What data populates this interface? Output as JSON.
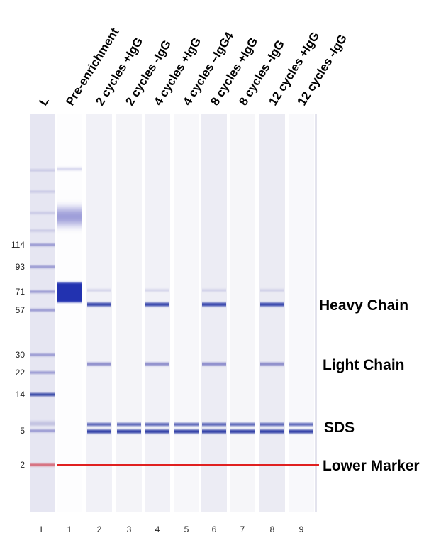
{
  "lanes": [
    {
      "header": "L",
      "number": "L"
    },
    {
      "header": "Pre-enrichment",
      "number": "1"
    },
    {
      "header": "2 cycles +IgG",
      "number": "2"
    },
    {
      "header": "2 cycles -IgG",
      "number": "3"
    },
    {
      "header": "4 cycles +IgG",
      "number": "4"
    },
    {
      "header": "4 cycles –IgG4",
      "number": "5"
    },
    {
      "header": "8 cycles +IgG",
      "number": "6"
    },
    {
      "header": "8 cycles -IgG",
      "number": "7"
    },
    {
      "header": "12 cycles +IgG",
      "number": "8"
    },
    {
      "header": "12 cycles -IgG",
      "number": "9"
    }
  ],
  "ladder_labels": [
    114,
    93,
    71,
    57,
    30,
    22,
    14,
    5,
    2
  ],
  "annotations": [
    "Heavy Chain",
    "Light Chain",
    "SDS",
    "Lower Marker"
  ]
}
